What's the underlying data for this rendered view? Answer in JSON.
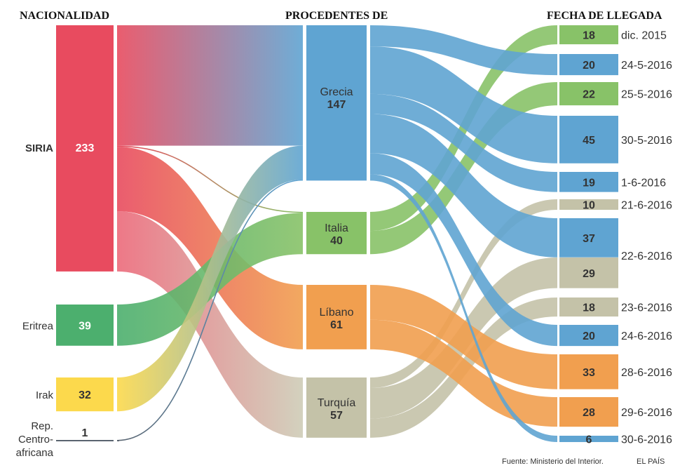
{
  "chart_data": {
    "type": "sankey",
    "title": "",
    "column_titles": [
      "NACIONALIDAD",
      "PROCEDENTES DE",
      "FECHA DE LLEGADA"
    ],
    "colors": {
      "siria": "#e84b5f",
      "eritrea": "#4caf6e",
      "irak": "#fcd94c",
      "rca": "#5a6470",
      "grecia": "#5fa4d2",
      "italia": "#88c268",
      "libano": "#f19f4f",
      "turquia": "#c4c2a8"
    },
    "nationalities": [
      {
        "id": "siria",
        "label": "SIRIA",
        "value": 233,
        "bold_label": true,
        "white_value": true
      },
      {
        "id": "eritrea",
        "label": "Eritrea",
        "value": 39,
        "bold_label": false,
        "white_value": true
      },
      {
        "id": "irak",
        "label": "Irak",
        "value": 32,
        "bold_label": false,
        "white_value": false
      },
      {
        "id": "rca",
        "label": "Rep. Centro- africana",
        "label_lines": [
          "Rep.",
          "Centro-",
          "africana"
        ],
        "value": 1,
        "bold_label": false,
        "white_value": false
      }
    ],
    "origins": [
      {
        "id": "grecia",
        "label": "Grecia",
        "value": 147
      },
      {
        "id": "italia",
        "label": "Italia",
        "value": 40
      },
      {
        "id": "libano",
        "label": "Líbano",
        "value": 61
      },
      {
        "id": "turquia",
        "label": "Turquía",
        "value": 57
      }
    ],
    "arrivals": [
      {
        "id": "d1",
        "date": "dic. 2015",
        "from": "italia",
        "value": 18
      },
      {
        "id": "d2",
        "date": "24-5-2016",
        "from": "grecia",
        "value": 20
      },
      {
        "id": "d3",
        "date": "25-5-2016",
        "from": "italia",
        "value": 22
      },
      {
        "id": "d4",
        "date": "30-5-2016",
        "from": "grecia",
        "value": 45
      },
      {
        "id": "d5",
        "date": "1-6-2016",
        "from": "grecia",
        "value": 19
      },
      {
        "id": "d6",
        "date": "21-6-2016",
        "from": "turquia",
        "value": 10
      },
      {
        "id": "d7a",
        "date": "22-6-2016",
        "from": "grecia",
        "value": 37
      },
      {
        "id": "d7b",
        "date": "",
        "from": "turquia",
        "value": 29
      },
      {
        "id": "d8",
        "date": "23-6-2016",
        "from": "turquia",
        "value": 18
      },
      {
        "id": "d9",
        "date": "24-6-2016",
        "from": "grecia",
        "value": 20
      },
      {
        "id": "d10",
        "date": "28-6-2016",
        "from": "libano",
        "value": 33
      },
      {
        "id": "d11",
        "date": "29-6-2016",
        "from": "libano",
        "value": 28
      },
      {
        "id": "d12",
        "date": "30-6-2016",
        "from": "grecia",
        "value": 6
      }
    ],
    "links_left": [
      {
        "source": "siria",
        "target": "grecia",
        "value": 114
      },
      {
        "source": "siria",
        "target": "italia",
        "value": 1
      },
      {
        "source": "siria",
        "target": "libano",
        "value": 61
      },
      {
        "source": "siria",
        "target": "turquia",
        "value": 57
      },
      {
        "source": "eritrea",
        "target": "italia",
        "value": 39
      },
      {
        "source": "irak",
        "target": "grecia",
        "value": 32
      },
      {
        "source": "rca",
        "target": "grecia",
        "value": 1
      }
    ]
  },
  "footer": {
    "source": "Fuente: Ministerio del Interior.",
    "publisher": "EL PAÍS"
  }
}
